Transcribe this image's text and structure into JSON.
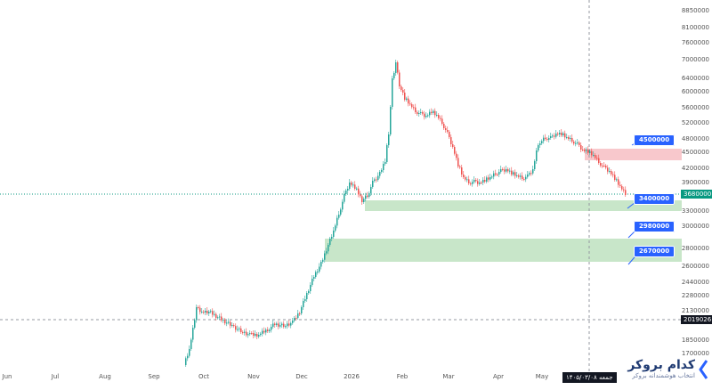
{
  "y_ticks": [
    "8850000",
    "8100000",
    "7600000",
    "7000000",
    "6400000",
    "6000000",
    "5600000",
    "5200000",
    "4800000",
    "4500000",
    "4200000",
    "3900000",
    "3600000",
    "3300000",
    "3000000",
    "2800000",
    "2600000",
    "2440000",
    "2280000",
    "2130000",
    "1850000",
    "1700000"
  ],
  "x_ticks": [
    "Jun",
    "Jul",
    "Aug",
    "Sep",
    "Oct",
    "Nov",
    "Dec",
    "2026",
    "Feb",
    "Mar",
    "Apr",
    "May"
  ],
  "current_price_tag": "3680000",
  "crosshair_price_tag": "2019026",
  "callouts": {
    "resistance": "4500000",
    "support1": "3400000",
    "support2": "2980000",
    "support3": "2670000"
  },
  "date_label": "جمعه ۱۴۰۵/۰۳/۰۸",
  "logo": {
    "title": "کدام بروکر",
    "subtitle": "انتخاب هوشمندانه بروکر"
  },
  "colors": {
    "up": "#26a69a",
    "down": "#ef5350",
    "support_zone": "#c8e6c9",
    "resistance_zone": "#f8c8cc",
    "callout": "#2962ff",
    "price_tag": "#089981"
  },
  "chart_data": {
    "type": "candlestick",
    "title": "",
    "xlabel": "",
    "ylabel": "",
    "ylim": [
      1700000,
      8850000
    ],
    "y_scale": "log",
    "x": [
      "Jun",
      "Jul",
      "Aug",
      "Sep",
      "Oct",
      "Nov",
      "Dec",
      "2026",
      "Feb",
      "Mar",
      "Apr",
      "May"
    ],
    "series": [
      {
        "values": [
          [
            "Sep",
            1700000
          ],
          [
            "Oct",
            2100000
          ],
          [
            "Oct",
            2170000
          ],
          [
            "Nov",
            1950000
          ],
          [
            "Nov",
            1900000
          ],
          [
            "Nov",
            2050000
          ],
          [
            "Dec",
            2100000
          ],
          [
            "Dec",
            2400000
          ],
          [
            "Dec",
            2650000
          ],
          [
            "Dec",
            2900000
          ],
          [
            "Dec",
            3300000
          ],
          [
            "Dec",
            3800000
          ],
          [
            "2026",
            3550000
          ],
          [
            "2026",
            3900000
          ],
          [
            "2026",
            4200000
          ],
          [
            "Feb",
            6200000
          ],
          [
            "Feb",
            7500000
          ],
          [
            "Feb",
            6500000
          ],
          [
            "Feb",
            5700000
          ],
          [
            "Feb",
            5400000
          ],
          [
            "Feb",
            5100000
          ],
          [
            "Mar",
            4700000
          ],
          [
            "Mar",
            4100000
          ],
          [
            "Mar",
            3800000
          ],
          [
            "Apr",
            3850000
          ],
          [
            "Apr",
            4050000
          ],
          [
            "Apr",
            4000000
          ],
          [
            "May",
            4800000
          ],
          [
            "May",
            4950000
          ],
          [
            "May",
            4700000
          ],
          [
            "May",
            4400000
          ],
          [
            "May",
            4200000
          ],
          [
            "May",
            3900000
          ],
          [
            "May",
            3650000
          ]
        ]
      }
    ],
    "levels": [
      {
        "kind": "resistance",
        "from": 4400000,
        "to": 4600000,
        "label": "4500000"
      },
      {
        "kind": "support",
        "from": 3300000,
        "to": 3450000,
        "label": "3400000"
      },
      {
        "kind": "support",
        "from": 2650000,
        "to": 2980000,
        "label": "2980000"
      },
      {
        "kind": "support",
        "from": 2650000,
        "to": 2980000,
        "label": "2670000"
      }
    ],
    "grid": false
  }
}
